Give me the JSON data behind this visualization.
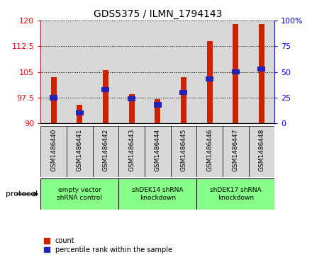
{
  "title": "GDS5375 / ILMN_1794143",
  "samples": [
    "GSM1486440",
    "GSM1486441",
    "GSM1486442",
    "GSM1486443",
    "GSM1486444",
    "GSM1486445",
    "GSM1486446",
    "GSM1486447",
    "GSM1486448"
  ],
  "red_values": [
    103.5,
    95.5,
    105.5,
    98.5,
    97.0,
    103.5,
    114.0,
    119.0,
    119.0
  ],
  "blue_values": [
    25,
    10,
    33,
    24,
    18,
    30,
    43,
    50,
    53
  ],
  "ymin": 90,
  "ymax": 120,
  "y_ticks": [
    90,
    97.5,
    105,
    112.5,
    120
  ],
  "y_tick_labels": [
    "90",
    "97.5",
    "105",
    "112.5",
    "120"
  ],
  "y2min": 0,
  "y2max": 100,
  "y2_ticks": [
    0,
    25,
    50,
    75,
    100
  ],
  "y2_tick_labels": [
    "0",
    "25",
    "50",
    "75",
    "100%"
  ],
  "bar_color": "#CC2200",
  "blue_color": "#2222BB",
  "groups": [
    {
      "label": "empty vector\nshRNA control",
      "start": 0,
      "end": 3
    },
    {
      "label": "shDEK14 shRNA\nknockdown",
      "start": 3,
      "end": 6
    },
    {
      "label": "shDEK17 shRNA\nknockdown",
      "start": 6,
      "end": 9
    }
  ],
  "group_color": "#88FF88",
  "tick_bg": "#D8D8D8",
  "legend_count": "count",
  "legend_percentile": "percentile rank within the sample"
}
